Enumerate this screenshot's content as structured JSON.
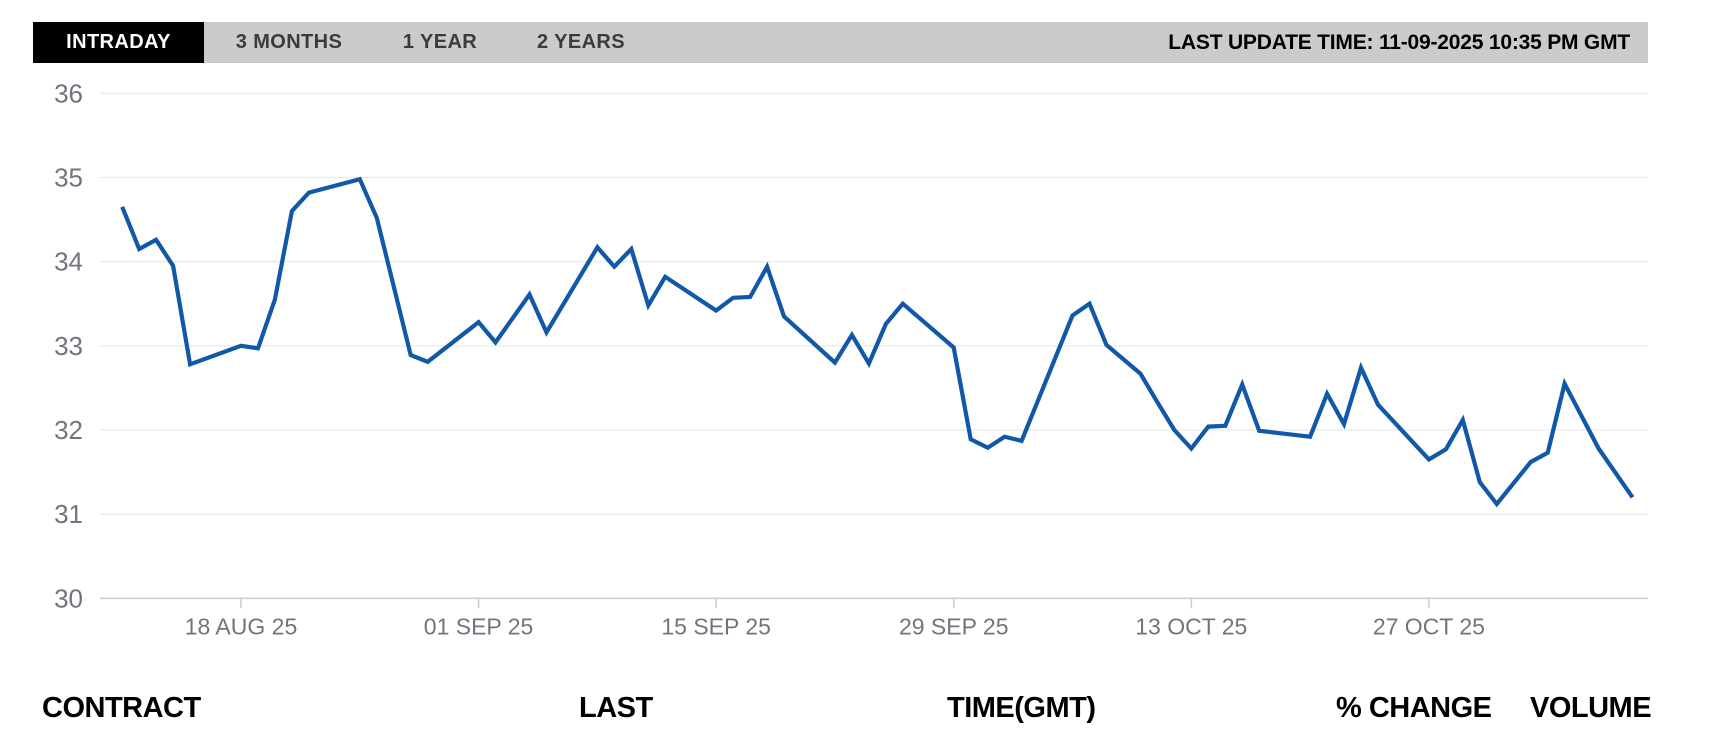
{
  "header": {
    "tabs": [
      {
        "label": "INTRADAY",
        "active": true
      },
      {
        "label": "3 MONTHS",
        "active": false
      },
      {
        "label": "1 YEAR",
        "active": false
      },
      {
        "label": "2 YEARS",
        "active": false
      }
    ],
    "last_update": "LAST UPDATE TIME: 11-09-2025 10:35 PM GMT"
  },
  "chart_data": {
    "type": "line",
    "title": "",
    "xlabel": "",
    "ylabel": "",
    "ylim": [
      30,
      36
    ],
    "y_ticks": [
      36,
      35,
      34,
      33,
      32,
      31,
      30
    ],
    "grid": "horizontal",
    "legend": "none",
    "x_ticks": [
      {
        "label": "18 AUG 25",
        "d": 7
      },
      {
        "label": "01 SEP 25",
        "d": 21
      },
      {
        "label": "15 SEP 25",
        "d": 35
      },
      {
        "label": "29 SEP 25",
        "d": 49
      },
      {
        "label": "13 OCT 25",
        "d": 63
      },
      {
        "label": "27 OCT 25",
        "d": 77
      }
    ],
    "series": [
      {
        "name": "price",
        "points": [
          {
            "d": 0,
            "date": "11 AUG 25",
            "value": 34.65
          },
          {
            "d": 1,
            "date": "12 AUG 25",
            "value": 34.15
          },
          {
            "d": 2,
            "date": "13 AUG 25",
            "value": 34.26
          },
          {
            "d": 3,
            "date": "14 AUG 25",
            "value": 33.95
          },
          {
            "d": 4,
            "date": "15 AUG 25",
            "value": 32.78
          },
          {
            "d": 7,
            "date": "18 AUG 25",
            "value": 33.0
          },
          {
            "d": 8,
            "date": "19 AUG 25",
            "value": 32.97
          },
          {
            "d": 9,
            "date": "20 AUG 25",
            "value": 33.55
          },
          {
            "d": 10,
            "date": "21 AUG 25",
            "value": 34.6
          },
          {
            "d": 11,
            "date": "22 AUG 25",
            "value": 34.82
          },
          {
            "d": 14,
            "date": "25 AUG 25",
            "value": 34.98
          },
          {
            "d": 15,
            "date": "26 AUG 25",
            "value": 34.52
          },
          {
            "d": 17,
            "date": "28 AUG 25",
            "value": 32.89
          },
          {
            "d": 18,
            "date": "29 AUG 25",
            "value": 32.81
          },
          {
            "d": 21,
            "date": "01 SEP 25",
            "value": 33.28
          },
          {
            "d": 22,
            "date": "02 SEP 25",
            "value": 33.04
          },
          {
            "d": 24,
            "date": "04 SEP 25",
            "value": 33.61
          },
          {
            "d": 25,
            "date": "05 SEP 25",
            "value": 33.16
          },
          {
            "d": 28,
            "date": "08 SEP 25",
            "value": 34.17
          },
          {
            "d": 29,
            "date": "09 SEP 25",
            "value": 33.94
          },
          {
            "d": 30,
            "date": "10 SEP 25",
            "value": 34.15
          },
          {
            "d": 31,
            "date": "11 SEP 25",
            "value": 33.48
          },
          {
            "d": 32,
            "date": "12 SEP 25",
            "value": 33.82
          },
          {
            "d": 35,
            "date": "15 SEP 25",
            "value": 33.42
          },
          {
            "d": 36,
            "date": "16 SEP 25",
            "value": 33.57
          },
          {
            "d": 37,
            "date": "17 SEP 25",
            "value": 33.58
          },
          {
            "d": 38,
            "date": "18 SEP 25",
            "value": 33.94
          },
          {
            "d": 39,
            "date": "19 SEP 25",
            "value": 33.35
          },
          {
            "d": 42,
            "date": "22 SEP 25",
            "value": 32.8
          },
          {
            "d": 43,
            "date": "23 SEP 25",
            "value": 33.13
          },
          {
            "d": 44,
            "date": "24 SEP 25",
            "value": 32.79
          },
          {
            "d": 45,
            "date": "25 SEP 25",
            "value": 33.26
          },
          {
            "d": 46,
            "date": "26 SEP 25",
            "value": 33.5
          },
          {
            "d": 49,
            "date": "29 SEP 25",
            "value": 32.98
          },
          {
            "d": 50,
            "date": "30 SEP 25",
            "value": 31.89
          },
          {
            "d": 51,
            "date": "01 OCT 25",
            "value": 31.79
          },
          {
            "d": 52,
            "date": "02 OCT 25",
            "value": 31.92
          },
          {
            "d": 53,
            "date": "03 OCT 25",
            "value": 31.87
          },
          {
            "d": 56,
            "date": "06 OCT 25",
            "value": 33.36
          },
          {
            "d": 57,
            "date": "07 OCT 25",
            "value": 33.5
          },
          {
            "d": 58,
            "date": "08 OCT 25",
            "value": 33.01
          },
          {
            "d": 60,
            "date": "10 OCT 25",
            "value": 32.67
          },
          {
            "d": 61,
            "date": "11 OCT 25",
            "value": 32.33
          },
          {
            "d": 62,
            "date": "12 OCT 25",
            "value": 32.0
          },
          {
            "d": 63,
            "date": "13 OCT 25",
            "value": 31.78
          },
          {
            "d": 64,
            "date": "14 OCT 25",
            "value": 32.04
          },
          {
            "d": 65,
            "date": "15 OCT 25",
            "value": 32.05
          },
          {
            "d": 66,
            "date": "16 OCT 25",
            "value": 32.54
          },
          {
            "d": 67,
            "date": "17 OCT 25",
            "value": 31.99
          },
          {
            "d": 70,
            "date": "20 OCT 25",
            "value": 31.92
          },
          {
            "d": 71,
            "date": "21 OCT 25",
            "value": 32.43
          },
          {
            "d": 72,
            "date": "22 OCT 25",
            "value": 32.07
          },
          {
            "d": 73,
            "date": "23 OCT 25",
            "value": 32.74
          },
          {
            "d": 74,
            "date": "24 OCT 25",
            "value": 32.3
          },
          {
            "d": 77,
            "date": "27 OCT 25",
            "value": 31.65
          },
          {
            "d": 78,
            "date": "28 OCT 25",
            "value": 31.77
          },
          {
            "d": 79,
            "date": "29 OCT 25",
            "value": 32.12
          },
          {
            "d": 80,
            "date": "30 OCT 25",
            "value": 31.38
          },
          {
            "d": 81,
            "date": "31 OCT 25",
            "value": 31.12
          },
          {
            "d": 83,
            "date": "02 NOV 25",
            "value": 31.62
          },
          {
            "d": 84,
            "date": "03 NOV 25",
            "value": 31.73
          },
          {
            "d": 85,
            "date": "04 NOV 25",
            "value": 32.55
          },
          {
            "d": 87,
            "date": "06 NOV 25",
            "value": 31.78
          },
          {
            "d": 89,
            "date": "08 NOV 25",
            "value": 31.2
          }
        ]
      }
    ]
  },
  "table": {
    "columns": [
      "CONTRACT",
      "LAST",
      "TIME(GMT)",
      "% CHANGE",
      "VOLUME"
    ]
  },
  "colors": {
    "line": "#1158A8",
    "tab_bar_bg": "#CBCBCB",
    "active_tab_bg": "#000000",
    "active_tab_text": "#FFFFFF",
    "tab_text": "#3B3B3B",
    "axis_label": "#70757D",
    "gridline": "#E9E9E9",
    "axis_line": "#C9D0DA"
  }
}
